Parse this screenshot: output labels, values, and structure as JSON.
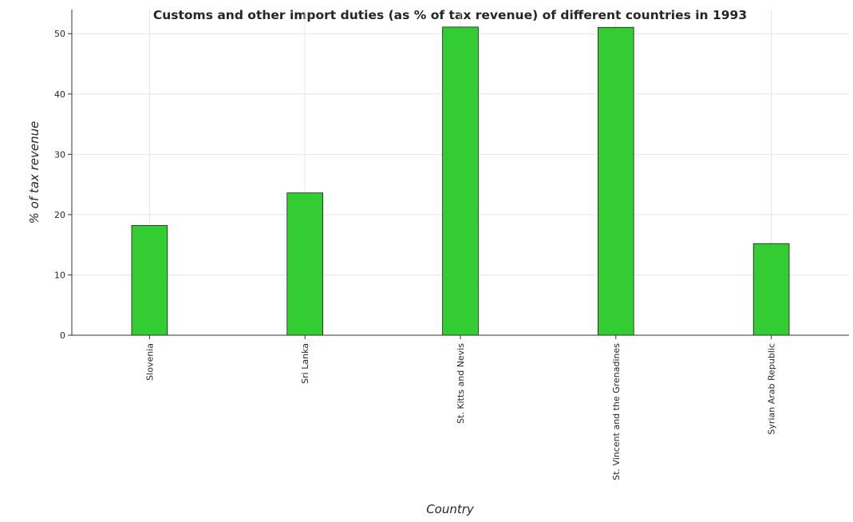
{
  "chart_data": {
    "type": "bar",
    "title": "Customs and other import duties (as % of tax revenue) of different countries in 1993",
    "xlabel": "Country",
    "ylabel": "% of tax revenue",
    "categories": [
      "Slovenia",
      "Sri Lanka",
      "St. Kitts and Nevis",
      "St. Vincent and the Grenadines",
      "Syrian Arab Republic"
    ],
    "values": [
      18.2,
      23.6,
      51.1,
      51.05,
      15.2
    ],
    "ylim": [
      0,
      54
    ],
    "yticks": [
      0,
      10,
      20,
      30,
      40,
      50
    ],
    "grid": true,
    "bar_color": "#33cc33",
    "bar_edge_color": "#1a1a1a"
  }
}
